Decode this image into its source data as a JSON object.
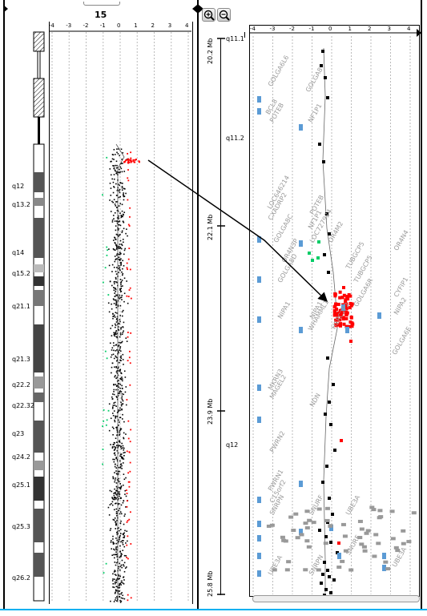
{
  "chromosome": {
    "title": "15",
    "bands": [
      "q12",
      "q13.2",
      "q14",
      "q15.2",
      "q21.1",
      "q21.3",
      "q22.2",
      "q22.32",
      "q23",
      "q24.2",
      "q25.1",
      "q25.3",
      "q26.2"
    ]
  },
  "left_scale": {
    "ticks": [
      "-4",
      "-3",
      "-2",
      "-1",
      "0",
      "1",
      "2",
      "3",
      "4"
    ]
  },
  "toolbar": {
    "zoom_in": "zoom-in",
    "zoom_out": "zoom-out"
  },
  "detail": {
    "ticks": [
      "-4",
      "-3",
      "-2",
      "-1",
      "0",
      "1",
      "2",
      "3",
      "4"
    ],
    "mb_labels": [
      "20.2 Mb",
      "22.1 Mb",
      "23.9 Mb",
      "25.8 Mb"
    ],
    "bands": [
      "q11.1",
      "q11.2",
      "q12"
    ],
    "genes": [
      "GOLGA6L6",
      "BCL8",
      "POTEB",
      "GOLGA8",
      "NF1P1",
      "LOC646214",
      "CXADRP2",
      "POTEB",
      "NF1P1",
      "LOC727924",
      "OR4M2",
      "OR4N4",
      "GOLGA8C",
      "OR4N3P",
      "TUBGCP5",
      "GOLGA8D",
      "TUBGCP5",
      "CYFIP1",
      "NIPA1",
      "NIPA2",
      "GOLGA6R",
      "NIPA1",
      "WHAMML1",
      "HERC2P2",
      "GOLGA6E",
      "MKRN3",
      "MAGEL2",
      "NDN",
      "PWRN2",
      "PWRN1",
      "C15orf2",
      "SNRPN",
      "SNURF",
      "UBE3A",
      "UBE3A",
      "SNRPN",
      "SNURF",
      "UBE3A"
    ]
  },
  "colors": {
    "loss": "#ff0000",
    "gain": "#00cc66",
    "probe": "#000000",
    "track": "#5b9bd5",
    "accent": "#00b0f0"
  }
}
